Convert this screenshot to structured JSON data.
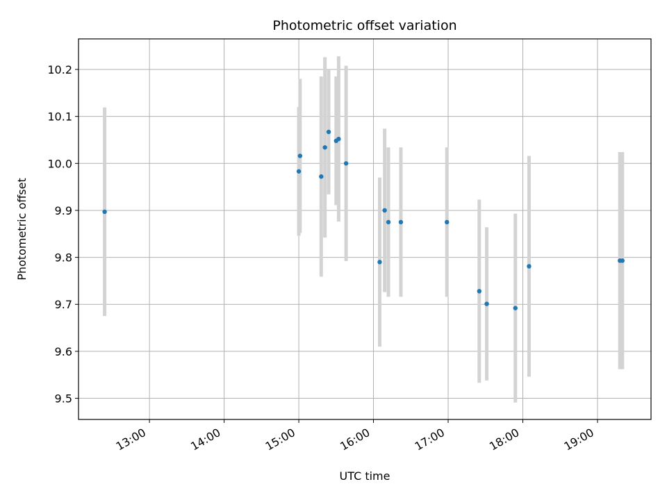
{
  "chart_data": {
    "type": "scatter",
    "title": "Photometric offset variation",
    "xlabel": "UTC time",
    "ylabel": "Photometric offset",
    "x_is_time": true,
    "xlim": [
      "12:03",
      "19:43"
    ],
    "ylim": [
      9.455,
      10.265
    ],
    "x_ticks": [
      "13:00",
      "14:00",
      "15:00",
      "16:00",
      "17:00",
      "18:00",
      "19:00"
    ],
    "y_ticks": [
      9.5,
      9.6,
      9.7,
      9.8,
      9.9,
      10.0,
      10.1,
      10.2
    ],
    "y_tick_labels": [
      "9.5",
      "9.6",
      "9.7",
      "9.8",
      "9.9",
      "10.0",
      "10.1",
      "10.2"
    ],
    "grid": true,
    "marker_color": "#1f77b4",
    "errorbar_color": "#d3d3d3",
    "points": [
      {
        "x": "12:24",
        "y": 9.897,
        "err": 0.222
      },
      {
        "x": "15:00",
        "y": 9.983,
        "err": 0.137
      },
      {
        "x": "15:01",
        "y": 10.016,
        "err": 0.164
      },
      {
        "x": "15:18",
        "y": 9.972,
        "err": 0.213
      },
      {
        "x": "15:21",
        "y": 10.034,
        "err": 0.192
      },
      {
        "x": "15:24",
        "y": 10.067,
        "err": 0.133
      },
      {
        "x": "15:30",
        "y": 10.048,
        "err": 0.137
      },
      {
        "x": "15:32",
        "y": 10.052,
        "err": 0.176
      },
      {
        "x": "15:38",
        "y": 10.0,
        "err": 0.208
      },
      {
        "x": "16:05",
        "y": 9.79,
        "err": 0.18
      },
      {
        "x": "16:09",
        "y": 9.9,
        "err": 0.174
      },
      {
        "x": "16:12",
        "y": 9.875,
        "err": 0.159
      },
      {
        "x": "16:22",
        "y": 9.875,
        "err": 0.159
      },
      {
        "x": "16:59",
        "y": 9.875,
        "err": 0.159
      },
      {
        "x": "17:25",
        "y": 9.728,
        "err": 0.195
      },
      {
        "x": "17:31",
        "y": 9.701,
        "err": 0.163
      },
      {
        "x": "17:54",
        "y": 9.692,
        "err": 0.201
      },
      {
        "x": "18:05",
        "y": 9.781,
        "err": 0.235
      },
      {
        "x": "19:18",
        "y": 9.793,
        "err": 0.231
      },
      {
        "x": "19:20",
        "y": 9.793,
        "err": 0.231
      }
    ]
  }
}
